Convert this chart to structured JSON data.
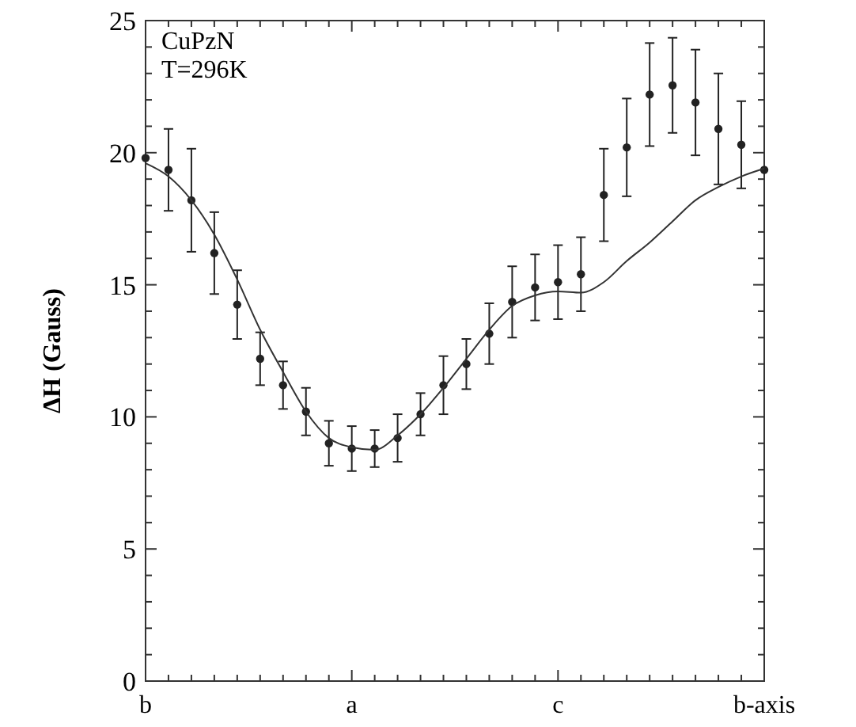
{
  "chart_data": {
    "type": "scatter",
    "ylabel": "ΔH (Gauss)",
    "annotations": [
      "CuPzN",
      "T=296K"
    ],
    "categories": [
      "b",
      null,
      null,
      null,
      null,
      null,
      null,
      null,
      null,
      "a",
      null,
      null,
      null,
      null,
      null,
      null,
      null,
      null,
      "c",
      null,
      null,
      null,
      null,
      null,
      null,
      null,
      null,
      "b-axis"
    ],
    "ylim": [
      0,
      25
    ],
    "yticks": [
      0,
      {
        "value": 1,
        "label": null
      },
      {
        "value": 2,
        "label": null
      },
      {
        "value": 3,
        "label": null
      },
      {
        "value": 4,
        "label": null
      },
      5,
      {
        "value": 6,
        "label": null
      },
      {
        "value": 7,
        "label": null
      },
      {
        "value": 8,
        "label": null
      },
      {
        "value": 9,
        "label": null
      },
      10,
      {
        "value": 11,
        "label": null
      },
      {
        "value": 12,
        "label": null
      },
      {
        "value": 13,
        "label": null
      },
      {
        "value": 14,
        "label": null
      },
      15,
      {
        "value": 16,
        "label": null
      },
      {
        "value": 17,
        "label": null
      },
      {
        "value": 18,
        "label": null
      },
      {
        "value": 19,
        "label": null
      },
      20,
      {
        "value": 21,
        "label": null
      },
      {
        "value": 22,
        "label": null
      },
      {
        "value": 23,
        "label": null
      },
      {
        "value": 24,
        "label": null
      },
      25
    ],
    "marker": "circle",
    "series": [
      {
        "color": "#222222",
        "values": [
          19.8,
          19.35,
          18.2,
          16.2,
          14.25,
          12.2,
          11.2,
          10.2,
          9.0,
          8.8,
          8.8,
          9.2,
          10.1,
          11.2,
          12.0,
          13.15,
          14.35,
          14.9,
          15.1,
          15.4,
          18.4,
          20.2,
          22.2,
          22.55,
          21.9,
          20.9,
          20.3,
          19.35
        ],
        "errors": [
          null,
          1.55,
          1.95,
          1.55,
          1.3,
          1.0,
          0.9,
          0.9,
          0.85,
          0.85,
          0.7,
          0.9,
          0.8,
          1.1,
          0.95,
          1.15,
          1.35,
          1.25,
          1.4,
          1.4,
          1.75,
          1.85,
          1.95,
          1.8,
          2.0,
          2.1,
          1.65,
          null
        ]
      },
      {
        "type": "line",
        "color": "#333333",
        "marker": "none",
        "values": [
          19.6,
          19.1,
          18.2,
          16.9,
          15.2,
          13.3,
          11.7,
          10.2,
          9.2,
          8.85,
          8.75,
          9.3,
          10.1,
          11.1,
          12.2,
          13.3,
          14.2,
          14.6,
          14.75,
          14.7,
          15.1,
          15.9,
          16.6,
          17.4,
          18.2,
          18.7,
          19.1,
          19.4
        ]
      }
    ]
  }
}
